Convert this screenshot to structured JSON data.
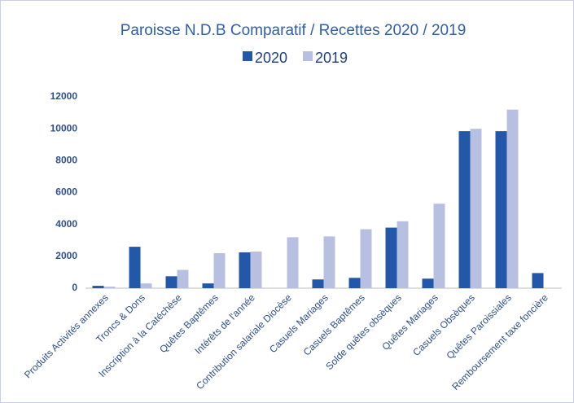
{
  "chart_data": {
    "type": "bar",
    "title": "Paroisse N.D.B Comparatif / Recettes  2020 / 2019",
    "categories": [
      "Produits Activités annexes",
      "Troncs & Dons",
      "Inscription à la Catéchèse",
      "Quêtes Baptêmes",
      "Intérêts de l'année",
      "Contribution salariale  Diocèse",
      "Casuels Mariages",
      "Casuels Baptêmes",
      "Solde quêtes obsèques",
      "Quêtes Mariages",
      "Casuels Obsèques",
      "Quêtes Paroissiales",
      "Remboursement taxe foncière"
    ],
    "series": [
      {
        "name": "2020",
        "color": "#2358a8",
        "values": [
          150,
          2600,
          750,
          300,
          2250,
          0,
          550,
          650,
          3800,
          600,
          9850,
          9850,
          950
        ]
      },
      {
        "name": "2019",
        "color": "#b8c0e2",
        "values": [
          100,
          300,
          1150,
          2200,
          2300,
          3200,
          3250,
          3700,
          4200,
          5300,
          10000,
          11200,
          0
        ]
      }
    ],
    "ylim": [
      0,
      12000
    ],
    "yticks": [
      0,
      2000,
      4000,
      6000,
      8000,
      10000,
      12000
    ],
    "grid": false
  }
}
